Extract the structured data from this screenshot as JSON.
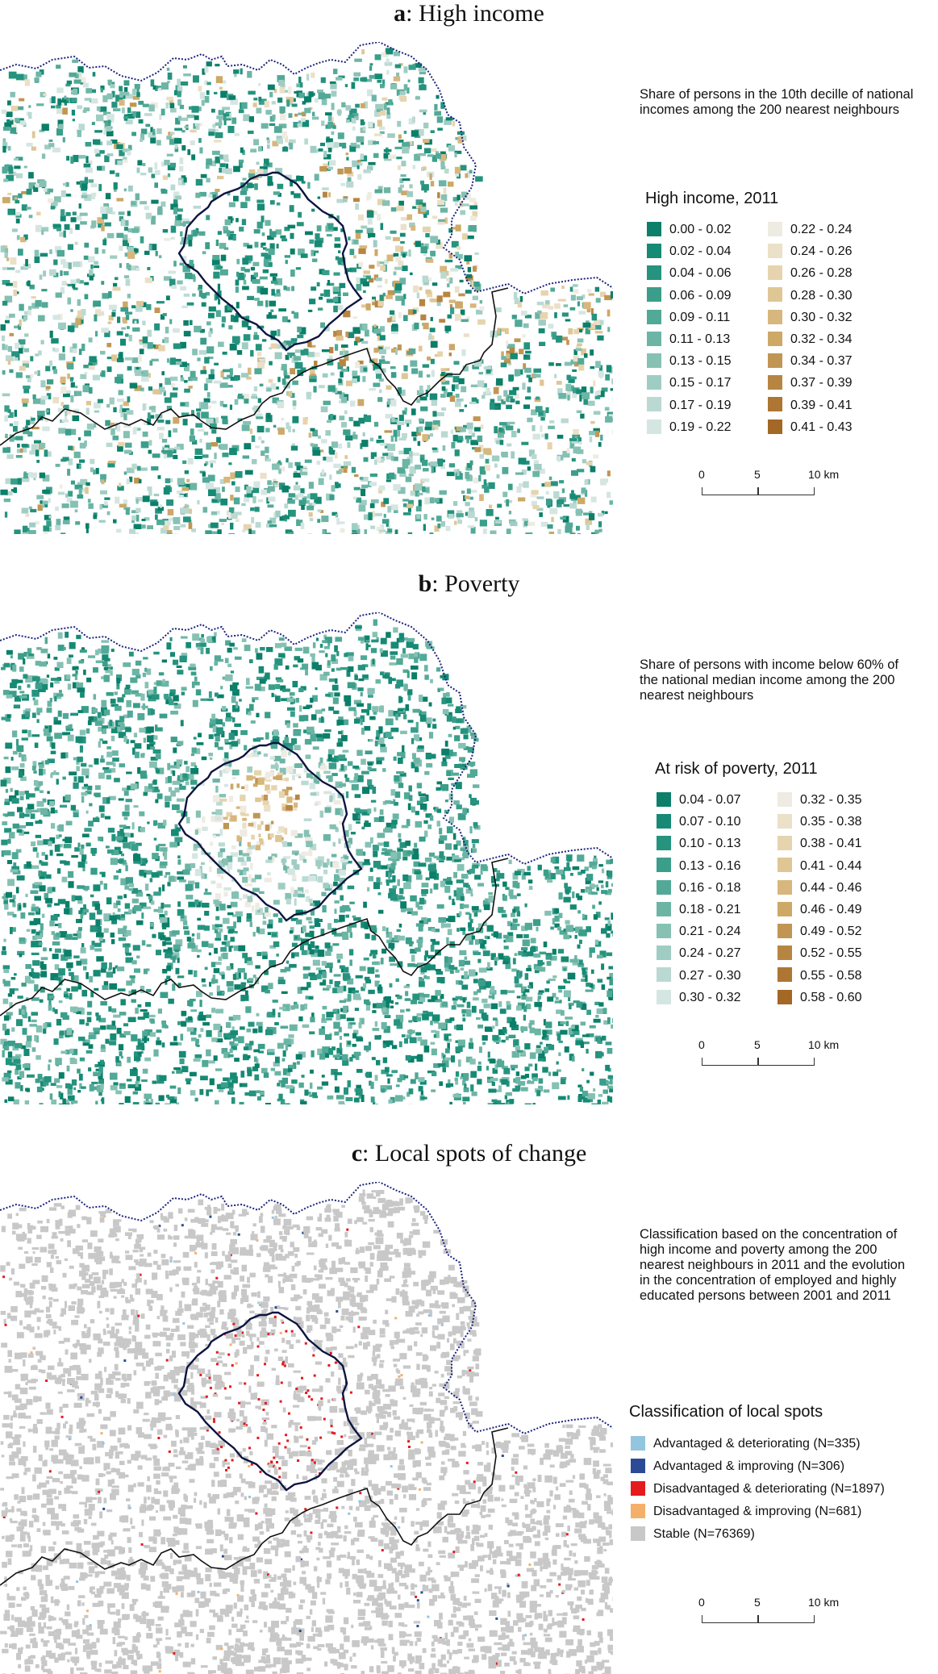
{
  "panels": [
    {
      "label": "a",
      "title": ": High income",
      "description": "Share of persons in the 10th decille of national incomes among the 200 nearest neighbours",
      "legend_title": "High income, 2011",
      "legend_items": [
        {
          "label": "0.00 - 0.02",
          "color": "#0b7f69"
        },
        {
          "label": "0.02 - 0.04",
          "color": "#168a74"
        },
        {
          "label": "0.04 - 0.06",
          "color": "#25937e"
        },
        {
          "label": "0.06 - 0.09",
          "color": "#3a9e8a"
        },
        {
          "label": "0.09 - 0.11",
          "color": "#52a997"
        },
        {
          "label": "0.11 - 0.13",
          "color": "#6cb5a5"
        },
        {
          "label": "0.13 - 0.15",
          "color": "#86c1b4"
        },
        {
          "label": "0.15 - 0.17",
          "color": "#a0cdc3"
        },
        {
          "label": "0.17 - 0.19",
          "color": "#bad9d2"
        },
        {
          "label": "0.19 - 0.22",
          "color": "#d5e6e2"
        },
        {
          "label": "0.22 - 0.24",
          "color": "#eeebe2"
        },
        {
          "label": "0.24 - 0.26",
          "color": "#ebe0c8"
        },
        {
          "label": "0.26 - 0.28",
          "color": "#e6d4ae"
        },
        {
          "label": "0.28 - 0.30",
          "color": "#dfc695"
        },
        {
          "label": "0.30 - 0.32",
          "color": "#d7b77d"
        },
        {
          "label": "0.32 - 0.34",
          "color": "#cda867"
        },
        {
          "label": "0.34 - 0.37",
          "color": "#c19553"
        },
        {
          "label": "0.37 - 0.39",
          "color": "#b78542"
        },
        {
          "label": "0.39 - 0.41",
          "color": "#ad7632"
        },
        {
          "label": "0.41 - 0.43",
          "color": "#a36726"
        }
      ],
      "scale": {
        "ticks": [
          "0",
          "5",
          "10 km"
        ]
      }
    },
    {
      "label": "b",
      "title": ": Poverty",
      "description": "Share of persons with income below 60% of the national median income among the 200 nearest neighbours",
      "legend_title": "At risk of poverty, 2011",
      "legend_items": [
        {
          "label": "0.04 - 0.07",
          "color": "#0b7f69"
        },
        {
          "label": "0.07 - 0.10",
          "color": "#168a74"
        },
        {
          "label": "0.10 - 0.13",
          "color": "#25937e"
        },
        {
          "label": "0.13 - 0.16",
          "color": "#3a9e8a"
        },
        {
          "label": "0.16 - 0.18",
          "color": "#52a997"
        },
        {
          "label": "0.18 - 0.21",
          "color": "#6cb5a5"
        },
        {
          "label": "0.21 - 0.24",
          "color": "#86c1b4"
        },
        {
          "label": "0.24 - 0.27",
          "color": "#a0cdc3"
        },
        {
          "label": "0.27 - 0.30",
          "color": "#bad9d2"
        },
        {
          "label": "0.30 - 0.32",
          "color": "#d5e6e2"
        },
        {
          "label": "0.32 - 0.35",
          "color": "#eeebe2"
        },
        {
          "label": "0.35 - 0.38",
          "color": "#ebe0c8"
        },
        {
          "label": "0.38 - 0.41",
          "color": "#e6d4ae"
        },
        {
          "label": "0.41 - 0.44",
          "color": "#dfc695"
        },
        {
          "label": "0.44 - 0.46",
          "color": "#d7b77d"
        },
        {
          "label": "0.46 - 0.49",
          "color": "#cda867"
        },
        {
          "label": "0.49 - 0.52",
          "color": "#c19553"
        },
        {
          "label": "0.52 - 0.55",
          "color": "#b78542"
        },
        {
          "label": "0.55 - 0.58",
          "color": "#ad7632"
        },
        {
          "label": "0.58 - 0.60",
          "color": "#a36726"
        }
      ],
      "scale": {
        "ticks": [
          "0",
          "5",
          "10 km"
        ]
      }
    },
    {
      "label": "c",
      "title": ": Local spots of change",
      "description": "Classification based on the concentration of high income and poverty among the 200 nearest neighbours in 2011 and the evolution in the concentration of employed and highly educated persons between 2001 and 2011",
      "legend_title": "Classification of local spots",
      "legend_items": [
        {
          "label": "Advantaged & deteriorating (N=335)",
          "color": "#92c5de"
        },
        {
          "label": "Advantaged & improving (N=306)",
          "color": "#2c4b96"
        },
        {
          "label": "Disadvantaged & deteriorating (N=1897)",
          "color": "#e41a1c"
        },
        {
          "label": "Disadvantaged & improving (N=681)",
          "color": "#f4b06a"
        },
        {
          "label": "Stable (N=76369)",
          "color": "#c8c8c8"
        }
      ],
      "scale": {
        "ticks": [
          "0",
          "5",
          "10 km"
        ]
      }
    }
  ],
  "map_colors": {
    "outer_boundary": "#1a237e",
    "region_boundary": "#111111",
    "inner_boundary": "#0d1440"
  }
}
